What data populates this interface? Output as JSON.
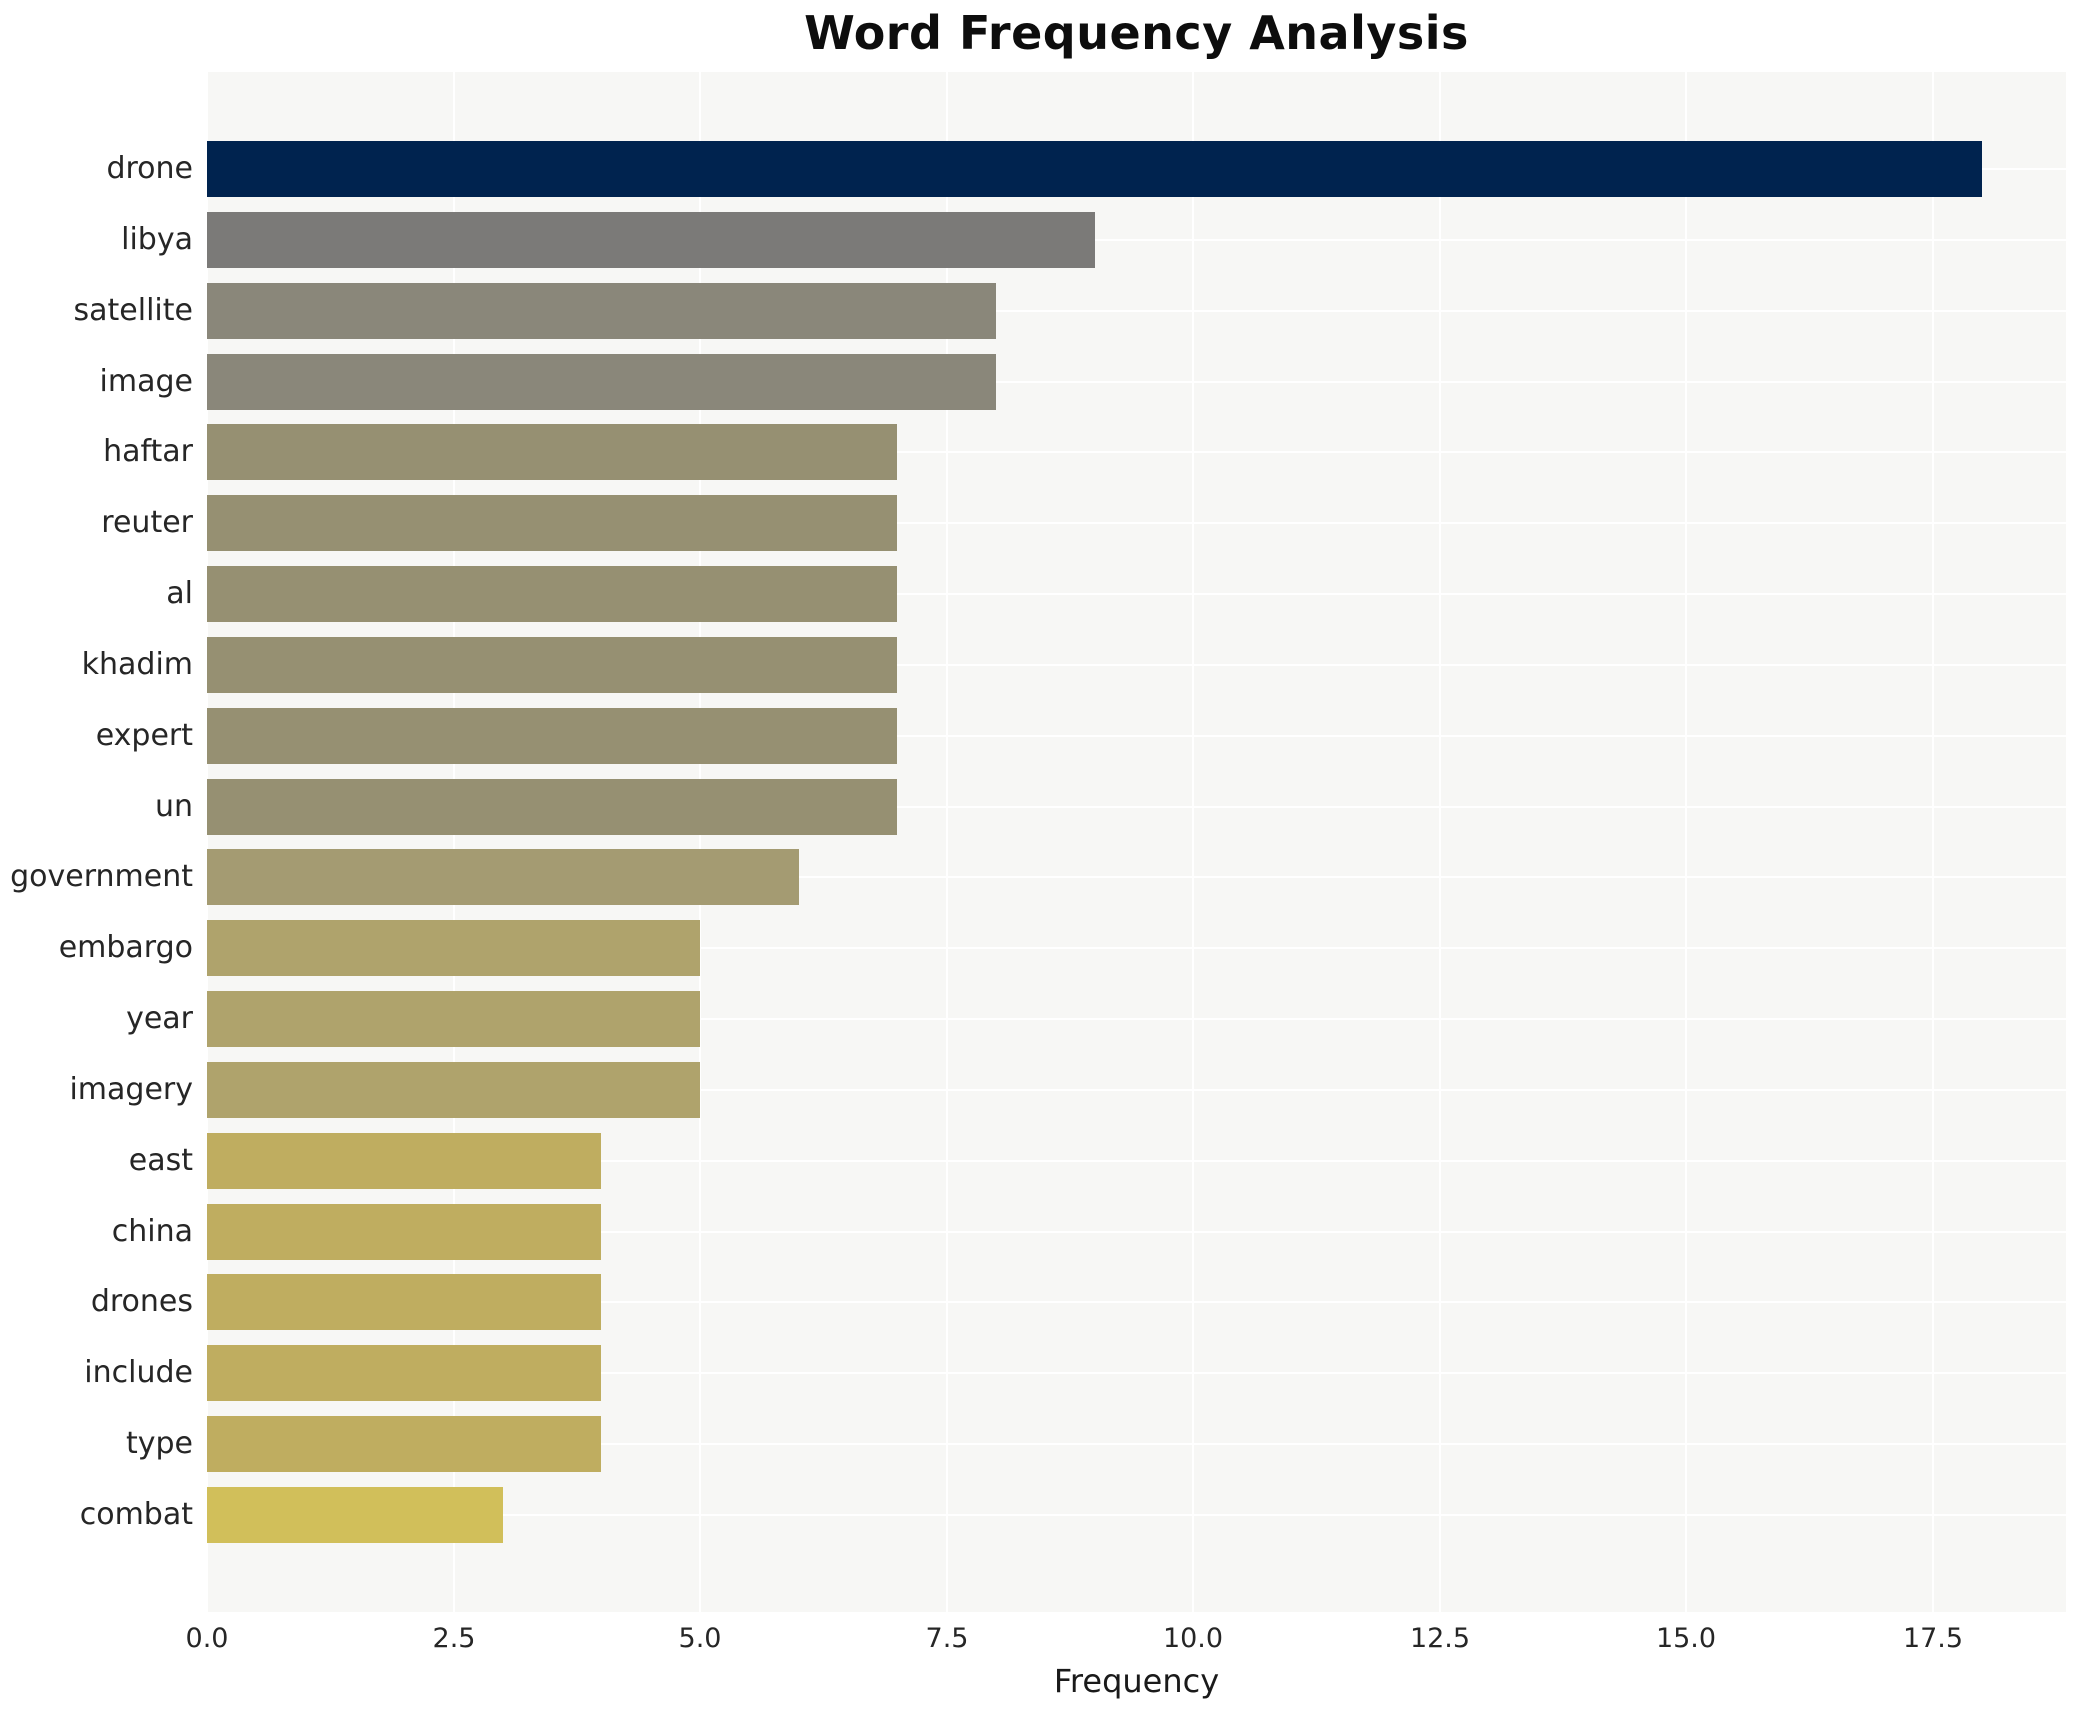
{
  "chart_data": {
    "type": "bar",
    "orientation": "horizontal",
    "title": "Word Frequency Analysis",
    "xlabel": "Frequency",
    "ylabel": "",
    "categories": [
      "drone",
      "libya",
      "satellite",
      "image",
      "haftar",
      "reuter",
      "al",
      "khadim",
      "expert",
      "un",
      "government",
      "embargo",
      "year",
      "imagery",
      "east",
      "china",
      "drones",
      "include",
      "type",
      "combat"
    ],
    "values": [
      18,
      9,
      8,
      8,
      7,
      7,
      7,
      7,
      7,
      7,
      6,
      5,
      5,
      5,
      4,
      4,
      4,
      4,
      4,
      3
    ],
    "bar_colors": [
      "#00234f",
      "#7b7a78",
      "#8a877a",
      "#8a877a",
      "#969072",
      "#969072",
      "#969072",
      "#969072",
      "#969072",
      "#969072",
      "#a49b72",
      "#afa36c",
      "#afa36c",
      "#afa36c",
      "#bfad60",
      "#bfad60",
      "#bfad60",
      "#bfad60",
      "#bfad60",
      "#d1bf5a"
    ],
    "xlim": [
      0,
      18.85
    ],
    "xticks": [
      0.0,
      2.5,
      5.0,
      7.5,
      10.0,
      12.5,
      15.0,
      17.5
    ],
    "xtick_labels": [
      "0.0",
      "2.5",
      "5.0",
      "7.5",
      "10.0",
      "12.5",
      "15.0",
      "17.5"
    ],
    "grid": true,
    "legend": false,
    "plot_background": "#f7f7f5",
    "grid_color": "#ffffff",
    "accent_color": "#00234f"
  }
}
